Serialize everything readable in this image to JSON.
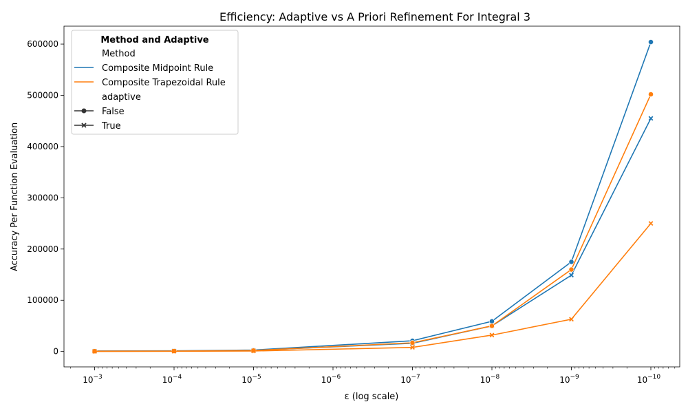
{
  "chart_data": {
    "type": "line",
    "title": "Efficiency: Adaptive vs A Priori Refinement For Integral 3",
    "xlabel": "ε (log scale)",
    "ylabel": "Accuracy Per Function Evaluation",
    "xscale": "log",
    "x_inverted": true,
    "x": [
      0.001,
      0.0001,
      1e-05,
      1e-07,
      1e-08,
      1e-09,
      1e-10
    ],
    "x_tick_base": "10",
    "x_tick_exponents": [
      "−3",
      "−4",
      "−5",
      "−6",
      "−7",
      "−8",
      "−9",
      "−10"
    ],
    "y_ticks": [
      0,
      100000,
      200000,
      300000,
      400000,
      500000,
      600000
    ],
    "y_tick_labels": [
      "0",
      "100000",
      "200000",
      "300000",
      "400000",
      "500000",
      "600000"
    ],
    "ylim": [
      -30000,
      635000
    ],
    "grid": false,
    "legend_placement": "top-left",
    "legend": {
      "title": "Method and Adaptive",
      "hue_title": "Method",
      "hue_entries": [
        "Composite Midpoint Rule",
        "Composite Trapezoidal Rule"
      ],
      "style_title": "adaptive",
      "style_entries": [
        "False",
        "True"
      ]
    },
    "series": [
      {
        "method": "Composite Midpoint Rule",
        "adaptive": "False",
        "color": "#1f77b4",
        "marker": "circle",
        "values": [
          1000,
          1300,
          2800,
          21000,
          59000,
          175000,
          604000
        ]
      },
      {
        "method": "Composite Midpoint Rule",
        "adaptive": "True",
        "color": "#1f77b4",
        "marker": "x",
        "values": [
          700,
          1000,
          2200,
          16000,
          50000,
          149000,
          455000
        ]
      },
      {
        "method": "Composite Trapezoidal Rule",
        "adaptive": "False",
        "color": "#ff7f0e",
        "marker": "circle",
        "values": [
          600,
          900,
          2000,
          17000,
          50000,
          160000,
          502000
        ]
      },
      {
        "method": "Composite Trapezoidal Rule",
        "adaptive": "True",
        "color": "#ff7f0e",
        "marker": "x",
        "values": [
          200,
          500,
          1000,
          8000,
          32000,
          63000,
          250000
        ]
      }
    ]
  }
}
